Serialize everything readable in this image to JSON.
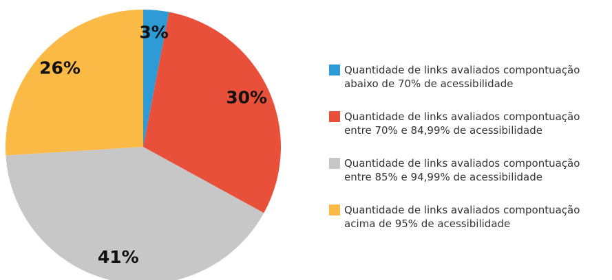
{
  "chart_data": {
    "type": "pie",
    "categories": [
      "Quantidade de links avaliados compontuação abaixo de 70% de acessibilidade",
      "Quantidade de links avaliados compontuação entre 70% e 84,99% de acessibilidade",
      "Quantidade de links avaliados compontuação entre 85% e 94,99% de acessibilidade",
      "Quantidade de links avaliados compontuação acima de 95% de acessibilidade"
    ],
    "values": [
      3,
      30,
      41,
      26
    ],
    "value_labels": [
      "3%",
      "30%",
      "41%",
      "26%"
    ],
    "colors": [
      "#2e9bd6",
      "#e9503a",
      "#c7c7c7",
      "#fbba45"
    ],
    "legend": "right"
  }
}
